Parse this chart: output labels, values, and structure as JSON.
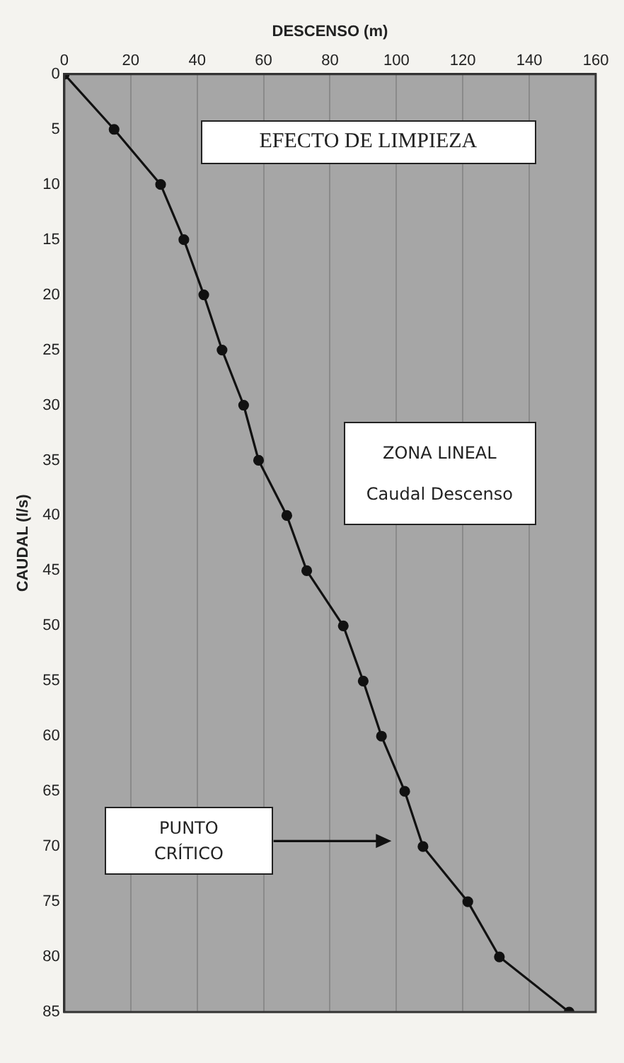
{
  "chart_data": {
    "type": "line",
    "xlabel": "DESCENSO (m)",
    "ylabel": "CAUDAL (l/s)",
    "x": [
      0,
      15,
      29,
      36,
      42,
      47.5,
      54,
      58.5,
      67,
      73,
      84,
      90,
      95.5,
      102.5,
      108,
      121.5,
      131,
      152
    ],
    "series": [
      {
        "color": "#111111",
        "values": [
          0,
          5,
          10,
          15,
          20,
          25,
          30,
          35,
          40,
          45,
          50,
          55,
          60,
          65,
          70,
          75,
          80,
          85
        ]
      }
    ],
    "xlim": [
      0,
      160
    ],
    "xticks": [
      0,
      20,
      40,
      60,
      80,
      100,
      120,
      140,
      160
    ],
    "ylim": [
      85,
      0
    ],
    "yticks": [
      0,
      5,
      10,
      15,
      20,
      25,
      30,
      35,
      40,
      45,
      50,
      55,
      60,
      65,
      70,
      75,
      80,
      85
    ],
    "grid": "x",
    "legend": false,
    "marker": "circle",
    "line_style": "solid",
    "annotations": [
      "EFECTO DE LIMPIEZA",
      "ZONA LINEAL",
      "Caudal Descenso",
      "PUNTO CRÍTICO"
    ]
  }
}
